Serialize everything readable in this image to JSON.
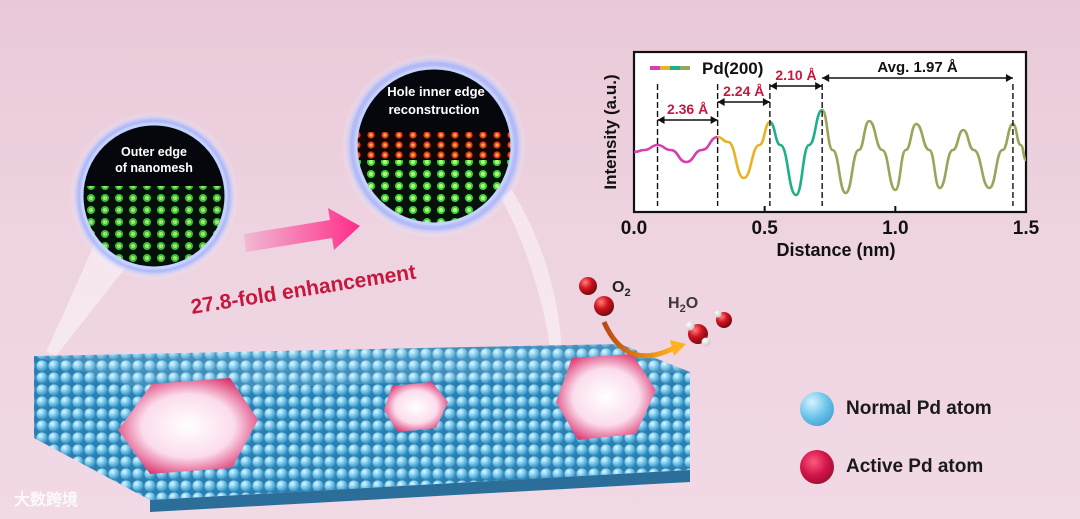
{
  "labels": {
    "outer_edge_line1": "Outer edge",
    "outer_edge_line2": "of nanomesh",
    "hole_inner_line1": "Hole inner edge",
    "hole_inner_line2": "reconstruction",
    "enhancement": "27.8-fold enhancement",
    "o2": "O",
    "o2_sub": "2",
    "h2o_h": "H",
    "h2o_sub": "2",
    "h2o_o": "O"
  },
  "legend": {
    "normal": "Normal Pd atom",
    "active": "Active Pd atom"
  },
  "watermark": "大数跨境",
  "colors": {
    "normal_atom": "#6fc6ec",
    "active_atom": "#d2144a",
    "enhancement_text": "#c8173f",
    "arrow_pink": "#ff2c8a",
    "annotation_red": "#c8173f",
    "curve_magenta": "#d63fb0",
    "curve_yellow": "#e6b324",
    "curve_teal": "#1fb08a",
    "curve_olive": "#9aa45a"
  },
  "chart_data": {
    "type": "line",
    "legend_label": "Pd(200)",
    "xlabel": "Distance  (nm)",
    "ylabel": "Intensity (a.u.)",
    "xlim": [
      0,
      1.5
    ],
    "xticks": [
      "0.0",
      "0.5",
      "1.0",
      "1.5"
    ],
    "xtick_values": [
      0.0,
      0.5,
      1.0,
      1.5
    ],
    "annotations": [
      {
        "label": "2.36 Å",
        "x_start": 0.09,
        "x_end": 0.32
      },
      {
        "label": "2.24 Å",
        "x_start": 0.32,
        "x_end": 0.52
      },
      {
        "label": "2.10 Å",
        "x_start": 0.52,
        "x_end": 0.72
      },
      {
        "label": "Avg. 1.97 Å",
        "x_start": 0.72,
        "x_end": 1.45
      }
    ],
    "marker_lines": [
      0.09,
      0.32,
      0.52,
      0.72,
      1.45
    ],
    "segments": [
      {
        "color": "#d63fb0",
        "points": [
          [
            0.0,
            0.48
          ],
          [
            0.04,
            0.5
          ],
          [
            0.09,
            0.55
          ],
          [
            0.14,
            0.5
          ],
          [
            0.2,
            0.38
          ],
          [
            0.26,
            0.5
          ],
          [
            0.32,
            0.63
          ]
        ]
      },
      {
        "color": "#e6b324",
        "points": [
          [
            0.32,
            0.63
          ],
          [
            0.36,
            0.58
          ],
          [
            0.42,
            0.22
          ],
          [
            0.48,
            0.55
          ],
          [
            0.52,
            0.78
          ]
        ]
      },
      {
        "color": "#1fb08a",
        "points": [
          [
            0.52,
            0.78
          ],
          [
            0.56,
            0.55
          ],
          [
            0.62,
            0.05
          ],
          [
            0.67,
            0.55
          ],
          [
            0.72,
            0.9
          ]
        ]
      },
      {
        "color": "#9aa45a",
        "points": [
          [
            0.72,
            0.9
          ],
          [
            0.76,
            0.5
          ],
          [
            0.81,
            0.07
          ],
          [
            0.86,
            0.5
          ],
          [
            0.9,
            0.79
          ],
          [
            0.95,
            0.5
          ],
          [
            1.0,
            0.1
          ],
          [
            1.04,
            0.5
          ],
          [
            1.08,
            0.76
          ],
          [
            1.13,
            0.5
          ],
          [
            1.17,
            0.12
          ],
          [
            1.22,
            0.5
          ],
          [
            1.26,
            0.7
          ],
          [
            1.3,
            0.5
          ],
          [
            1.36,
            0.12
          ],
          [
            1.41,
            0.5
          ],
          [
            1.45,
            0.76
          ],
          [
            1.48,
            0.55
          ],
          [
            1.5,
            0.4
          ]
        ]
      }
    ]
  }
}
